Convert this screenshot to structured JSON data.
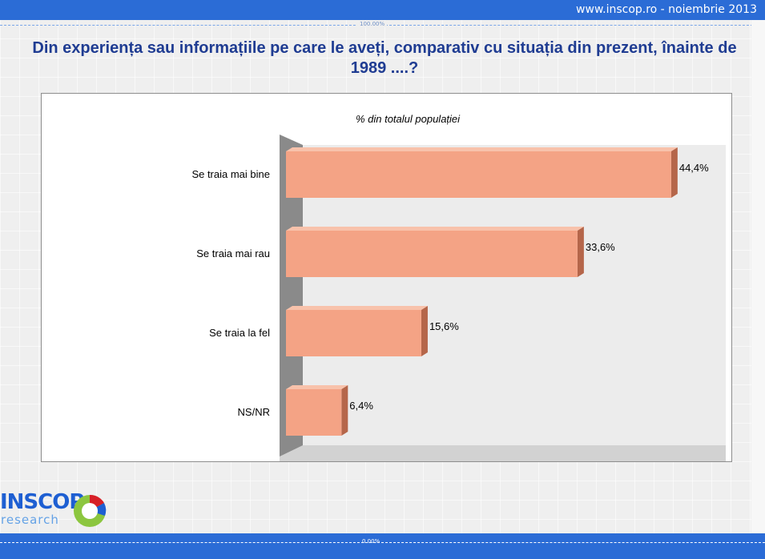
{
  "header": {
    "site_label": "www.inscop.ro  -  noiembrie 2013"
  },
  "scale_marks": {
    "top": "100.00%",
    "bottom": "0.00%"
  },
  "question": "Din experiența sau informațiile pe care le aveți, comparativ cu situația din prezent, înainte de 1989 ....?",
  "logo": {
    "brand": "INSCOP",
    "sub": "research"
  },
  "colors": {
    "bar_front": "#f4a385",
    "bar_side": "#b5664a",
    "bar_top": "#f8c2ab",
    "title": "#1f3c92",
    "band": "#2b6cd6"
  },
  "chart_data": {
    "type": "bar",
    "orientation": "horizontal",
    "subtitle": "% din totalul populației",
    "categories": [
      "Se traia mai bine",
      "Se traia mai rau",
      "Se traia la fel",
      "NS/NR"
    ],
    "values": [
      44.4,
      33.6,
      15.6,
      6.4
    ],
    "value_labels": [
      "44,4%",
      "33,6%",
      "15,6%",
      "6,4%"
    ],
    "xlim": [
      0,
      45
    ],
    "grid": false,
    "legend": "none"
  }
}
